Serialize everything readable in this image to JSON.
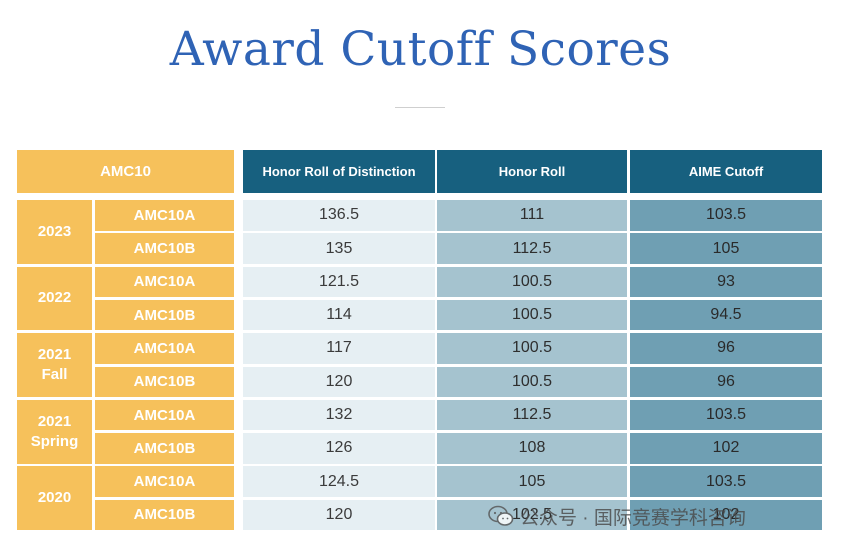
{
  "title": "Award Cutoff Scores",
  "table": {
    "corner_header": "AMC10",
    "columns": [
      "Honor Roll of Distinction",
      "Honor Roll",
      "AIME Cutoff"
    ],
    "groups": [
      {
        "year": "2023",
        "rows": [
          {
            "contest": "AMC10A",
            "values": [
              "136.5",
              "111",
              "103.5"
            ]
          },
          {
            "contest": "AMC10B",
            "values": [
              "135",
              "112.5",
              "105"
            ]
          }
        ]
      },
      {
        "year": "2022",
        "rows": [
          {
            "contest": "AMC10A",
            "values": [
              "121.5",
              "100.5",
              "93"
            ]
          },
          {
            "contest": "AMC10B",
            "values": [
              "114",
              "100.5",
              "94.5"
            ]
          }
        ]
      },
      {
        "year": "2021\nFall",
        "rows": [
          {
            "contest": "AMC10A",
            "values": [
              "117",
              "100.5",
              "96"
            ]
          },
          {
            "contest": "AMC10B",
            "values": [
              "120",
              "100.5",
              "96"
            ]
          }
        ]
      },
      {
        "year": "2021\nSpring",
        "rows": [
          {
            "contest": "AMC10A",
            "values": [
              "132",
              "112.5",
              "103.5"
            ]
          },
          {
            "contest": "AMC10B",
            "values": [
              "126",
              "108",
              "102"
            ]
          }
        ]
      },
      {
        "year": "2020",
        "rows": [
          {
            "contest": "AMC10A",
            "values": [
              "124.5",
              "105",
              "103.5"
            ]
          },
          {
            "contest": "AMC10B",
            "values": [
              "120",
              "102.5",
              "102"
            ]
          }
        ]
      }
    ]
  },
  "watermark": {
    "text": "公众号 · 国际竞赛学科咨询",
    "icon": "wechat-icon"
  },
  "colors": {
    "title": "#2f63b5",
    "amc_orange": "#f6c15b",
    "header_teal": "#17607f",
    "col1": "#e6eff3",
    "col2": "#a5c3cf",
    "col3": "#6f9fb3"
  }
}
